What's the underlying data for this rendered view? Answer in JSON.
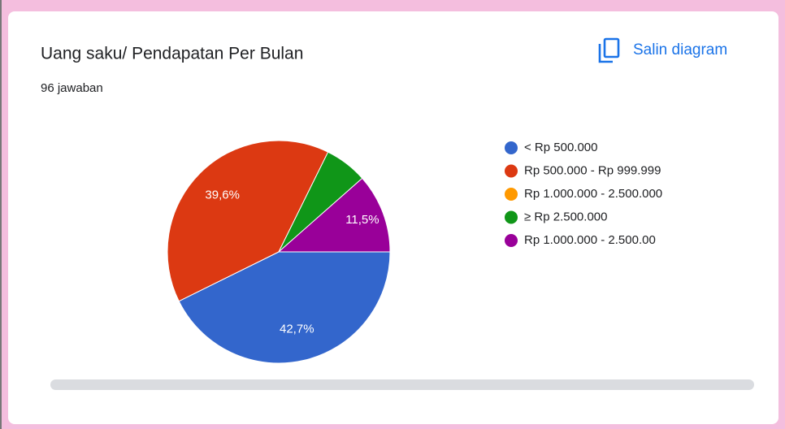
{
  "chart_data": {
    "type": "pie",
    "title": "Uang saku/ Pendapatan Per Bulan",
    "subtitle": "96 jawaban",
    "action": "Salin diagram",
    "categories": [
      "< Rp 500.000",
      "Rp 500.000 - Rp 999.999",
      "Rp 1.000.000 - 2.500.000",
      "≥ Rp 2.500.000",
      "Rp 1.000.000 - 2.500.00"
    ],
    "values": [
      42.7,
      39.6,
      0,
      6.2,
      11.5
    ],
    "value_labels": [
      "42,7%",
      "39,6%",
      null,
      null,
      "11,5%"
    ],
    "colors": [
      "#3366cc",
      "#dc3912",
      "#ff9900",
      "#109618",
      "#990099"
    ],
    "legend": "right"
  }
}
